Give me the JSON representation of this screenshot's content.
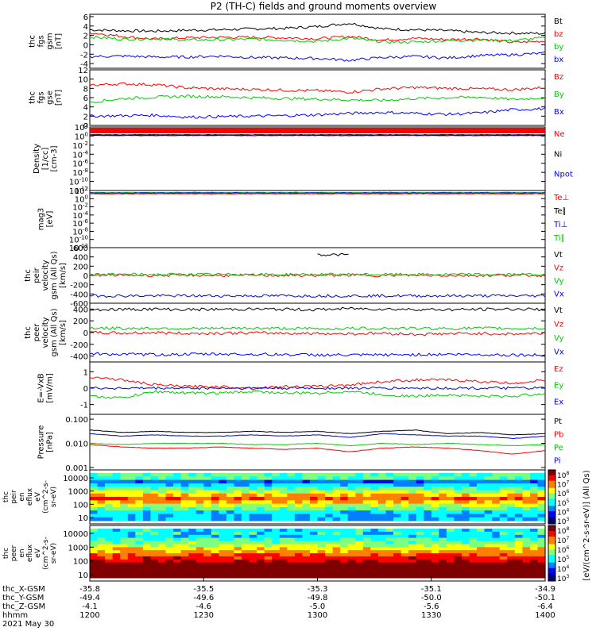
{
  "title": "P2 (TH-C) fields and ground moments overview",
  "panels": [
    {
      "id": "fgs_gsm",
      "ylabel": [
        "thc",
        "fgs",
        "gsm",
        "[nT]"
      ],
      "yticks": [
        "6",
        "4",
        "2",
        "0",
        "-2",
        "-4"
      ],
      "ylim": [
        -5,
        6.5
      ],
      "series": [
        {
          "name": "Bt",
          "color": "#000000",
          "values": [
            3.2,
            3.0,
            2.9,
            3.1,
            3.2,
            3.4,
            3.5,
            3.9,
            4.6,
            3.4,
            3.2,
            3.0,
            2.6,
            2.5,
            2.4
          ]
        },
        {
          "name": "bz",
          "color": "#ff0000",
          "values": [
            2.6,
            1.8,
            1.2,
            1.5,
            1.6,
            1.6,
            1.5,
            1.3,
            1.8,
            1.0,
            1.4,
            1.1,
            1.3,
            0.5,
            0.8
          ]
        },
        {
          "name": "by",
          "color": "#00cc00",
          "values": [
            1.7,
            1.2,
            1.3,
            1.0,
            1.1,
            1.2,
            1.0,
            0.7,
            1.4,
            0.6,
            0.6,
            0.9,
            1.0,
            0.9,
            1.5
          ]
        },
        {
          "name": "bx",
          "color": "#0000ff",
          "values": [
            -2.5,
            -2.4,
            -2.6,
            -2.6,
            -2.4,
            -2.7,
            -2.8,
            -2.9,
            -3.3,
            -2.7,
            -2.5,
            -2.8,
            -2.3,
            -2.1,
            -1.8
          ]
        }
      ]
    },
    {
      "id": "fgs_gse",
      "ylabel": [
        "thc",
        "fgs",
        "gse",
        "[nT]"
      ],
      "yticks": [
        "12",
        "10",
        "8",
        "6",
        "4",
        "2",
        "0"
      ],
      "ylim": [
        0,
        12
      ],
      "series": [
        {
          "name": "Bz",
          "color": "#ff0000",
          "values": [
            8.7,
            9.0,
            8.8,
            8.1,
            7.9,
            7.8,
            7.6,
            7.5,
            7.2,
            7.9,
            8.2,
            8.0,
            7.9,
            7.7,
            8.2
          ]
        },
        {
          "name": "By",
          "color": "#00cc00",
          "values": [
            5.0,
            5.8,
            6.1,
            6.3,
            6.2,
            6.0,
            5.8,
            5.7,
            5.5,
            5.4,
            5.8,
            6.0,
            6.1,
            5.6,
            6.0
          ]
        },
        {
          "name": "Bx",
          "color": "#0000ff",
          "values": [
            2.0,
            2.1,
            2.2,
            1.8,
            1.9,
            2.0,
            2.1,
            2.3,
            2.6,
            2.8,
            2.6,
            2.4,
            2.7,
            3.4,
            3.6
          ]
        }
      ]
    },
    {
      "id": "density",
      "ylabel": [
        "Density",
        "[1/cc]",
        "[cm-3]"
      ],
      "yticks": [
        "10^2",
        "10^0",
        "10^-2",
        "10^-4",
        "10^-6",
        "10^-8",
        "10^-10",
        "10^-12"
      ],
      "ylim": [
        -12,
        2
      ],
      "log": true,
      "series": [
        {
          "name": "Ne",
          "color": "#ff0000",
          "values": [
            0.1,
            0.1,
            0.1,
            0.1,
            0.1,
            0.1,
            0.1,
            0.1,
            0.1,
            0.1,
            0.1,
            0.1,
            0.1,
            0.1,
            0.1
          ]
        },
        {
          "name": "Ni",
          "color": "#000000",
          "values": [
            0.2,
            0.2,
            0.2,
            0.2,
            0.2,
            0.2,
            0.2,
            0.2,
            0.2,
            0.2,
            0.2,
            0.2,
            0.2,
            0.2,
            0.2
          ]
        },
        {
          "name": "Npot",
          "color": "#0000ff",
          "values": [
            0.3,
            0.3,
            0.3,
            0.3,
            0.3,
            0.3,
            0.3,
            0.3,
            0.3,
            0.3,
            0.3,
            0.3,
            0.3,
            0.3,
            0.3
          ]
        }
      ]
    },
    {
      "id": "temp",
      "ylabel": [
        "mag3",
        "[eV]"
      ],
      "yticks": [
        "10^2",
        "10^0",
        "10^-2",
        "10^-4",
        "10^-6",
        "10^-8",
        "10^-10",
        "10^-12"
      ],
      "ylim": [
        -12,
        2
      ],
      "log": true,
      "series": [
        {
          "name": "Te⊥",
          "color": "#ff0000",
          "values": [
            1.2,
            1.2,
            1.2,
            1.2,
            1.2,
            1.2,
            1.2,
            1.2,
            1.2,
            1.2,
            1.2,
            1.2,
            1.2,
            1.2,
            1.2
          ]
        },
        {
          "name": "Te∥",
          "color": "#000000",
          "values": [
            1.3,
            1.3,
            1.3,
            1.3,
            1.3,
            1.3,
            1.3,
            1.3,
            1.3,
            1.3,
            1.3,
            1.3,
            1.3,
            1.3,
            1.3
          ]
        },
        {
          "name": "Ti⊥",
          "color": "#0000ff",
          "values": [
            1.5,
            1.5,
            1.5,
            1.5,
            1.5,
            1.5,
            1.5,
            1.5,
            1.5,
            1.5,
            1.5,
            1.5,
            1.5,
            1.5,
            1.5
          ]
        },
        {
          "name": "Ti∥",
          "color": "#00cc00",
          "values": [
            1.4,
            1.4,
            1.4,
            1.4,
            1.4,
            1.4,
            1.4,
            1.4,
            1.4,
            1.4,
            1.4,
            1.4,
            1.4,
            1.4,
            1.4
          ]
        }
      ]
    },
    {
      "id": "peir_vel",
      "ylabel": [
        "thc",
        "peir",
        "velocity",
        "gsm (All Qs)",
        "[km/s]"
      ],
      "yticks": [
        "600",
        "400",
        "200",
        "0",
        "-200",
        "-400",
        "-600"
      ],
      "ylim": [
        -600,
        600
      ],
      "series": [
        {
          "name": "Vt",
          "color": "#000000",
          "values": [
            null,
            null,
            null,
            null,
            null,
            null,
            null,
            450,
            445,
            null,
            null,
            null,
            null,
            null,
            null
          ]
        },
        {
          "name": "Vz",
          "color": "#ff0000",
          "values": [
            10,
            5,
            0,
            5,
            0,
            5,
            0,
            0,
            10,
            0,
            5,
            0,
            0,
            5,
            0
          ]
        },
        {
          "name": "Vy",
          "color": "#00cc00",
          "values": [
            20,
            20,
            20,
            20,
            20,
            20,
            20,
            20,
            20,
            20,
            20,
            20,
            20,
            20,
            20
          ]
        },
        {
          "name": "Vx",
          "color": "#0000ff",
          "values": [
            -440,
            -440,
            -440,
            -440,
            -440,
            -440,
            -440,
            -440,
            -440,
            -440,
            -440,
            -440,
            -440,
            -440,
            -440
          ]
        }
      ]
    },
    {
      "id": "peer_vel",
      "ylabel": [
        "thc",
        "peer",
        "velocity",
        "gsm (All Qs)",
        "[km/s]"
      ],
      "yticks": [
        "400",
        "200",
        "0",
        "-200",
        "-400"
      ],
      "ylim": [
        -500,
        500
      ],
      "series": [
        {
          "name": "Vt",
          "color": "#000000",
          "values": [
            390,
            395,
            400,
            390,
            395,
            400,
            395,
            390,
            410,
            400,
            395,
            390,
            395,
            400,
            395
          ]
        },
        {
          "name": "Vz",
          "color": "#ff0000",
          "values": [
            0,
            -10,
            0,
            -15,
            -10,
            -5,
            -10,
            -15,
            -20,
            -10,
            -30,
            -20,
            -15,
            -25,
            -10
          ]
        },
        {
          "name": "Vy",
          "color": "#00cc00",
          "values": [
            80,
            70,
            75,
            70,
            70,
            75,
            70,
            65,
            70,
            75,
            70,
            70,
            75,
            70,
            75
          ]
        },
        {
          "name": "Vx",
          "color": "#0000ff",
          "values": [
            -360,
            -370,
            -375,
            -370,
            -365,
            -370,
            -375,
            -380,
            -385,
            -380,
            -375,
            -370,
            -375,
            -380,
            -385
          ]
        }
      ]
    },
    {
      "id": "e_field",
      "ylabel": [
        "E=-VxB",
        "[mV/m]"
      ],
      "yticks": [
        "1",
        "0",
        "-1"
      ],
      "ylim": [
        -1.6,
        1.6
      ],
      "series": [
        {
          "name": "Ez",
          "color": "#ff0000",
          "values": [
            0.7,
            0.5,
            0.2,
            0.1,
            0.1,
            0.0,
            0.1,
            0.1,
            0.2,
            0.4,
            0.5,
            0.5,
            0.4,
            0.3,
            0.5
          ]
        },
        {
          "name": "Ey",
          "color": "#00cc00",
          "values": [
            -0.5,
            -0.6,
            -0.2,
            -0.3,
            -0.3,
            -0.2,
            -0.3,
            -0.3,
            -0.2,
            -0.4,
            -0.5,
            -0.4,
            -0.5,
            -0.5,
            -0.3
          ]
        },
        {
          "name": "Ex",
          "color": "#0000ff",
          "values": [
            0,
            0,
            0,
            0,
            0,
            0,
            0,
            0,
            0,
            0,
            0,
            0,
            0,
            0,
            0
          ]
        }
      ]
    },
    {
      "id": "pressure",
      "ylabel": [
        "Pressure",
        "[nPa]"
      ],
      "yticks": [
        "0.100",
        "0.010",
        "0.001"
      ],
      "ytickvals": [
        -1,
        -2,
        -3
      ],
      "ylim": [
        -3.1,
        -0.8
      ],
      "log": true,
      "series": [
        {
          "name": "Pt",
          "color": "#000000",
          "values": [
            -1.45,
            -1.55,
            -1.5,
            -1.55,
            -1.55,
            -1.5,
            -1.55,
            -1.5,
            -1.6,
            -1.5,
            -1.45,
            -1.6,
            -1.55,
            -1.65,
            -1.6
          ]
        },
        {
          "name": "Pb",
          "color": "#ff0000",
          "values": [
            -2.05,
            -2.15,
            -2.2,
            -2.2,
            -2.15,
            -2.2,
            -2.25,
            -2.2,
            -2.35,
            -2.2,
            -2.15,
            -2.2,
            -2.3,
            -2.45,
            -2.3
          ]
        },
        {
          "name": "Pe",
          "color": "#00cc00",
          "values": [
            -2.0,
            -2.05,
            -2.0,
            -2.0,
            -2.0,
            -2.05,
            -2.05,
            -2.0,
            -2.1,
            -2.0,
            -2.05,
            -2.0,
            -2.05,
            -2.1,
            -2.05
          ]
        },
        {
          "name": "Pi",
          "color": "#0000ff",
          "values": [
            -1.6,
            -1.7,
            -1.65,
            -1.7,
            -1.7,
            -1.65,
            -1.7,
            -1.65,
            -1.75,
            -1.6,
            -1.65,
            -1.7,
            -1.7,
            -1.8,
            -1.7
          ]
        }
      ]
    }
  ],
  "spectrograms": [
    {
      "id": "peir_en",
      "ylabel": [
        "thc",
        "peir",
        "en",
        "eflux",
        "eV",
        "(cm^2-s-",
        "sr-eV)"
      ],
      "yticks": [
        "10000",
        "1000",
        "100",
        "10"
      ]
    },
    {
      "id": "peer_en",
      "ylabel": [
        "thc",
        "peer",
        "en",
        "eflux",
        "eV",
        "(cm^2-s-",
        "sr-eV)"
      ],
      "yticks": [
        "10000",
        "1000",
        "100",
        "10"
      ]
    }
  ],
  "colorbar": {
    "label": "[eV/(cm^2-s-sr-eV)] (All Qs)",
    "ticks1": [
      "10^8",
      "10^7",
      "10^6",
      "10^5",
      "10^4",
      "10^3"
    ],
    "ticks2": [
      "10^8",
      "10^7",
      "10^6",
      "10^5",
      "10^4",
      "10^3"
    ]
  },
  "xaxis": {
    "row_labels": [
      "thc_X-GSM",
      "thc_Y-GSM",
      "thc_Z-GSM",
      "hhmm",
      "2021 May 30"
    ],
    "columns": [
      [
        "-35.8",
        "-49.4",
        "-4.1",
        "1200"
      ],
      [
        "-35.5",
        "-49.6",
        "-4.6",
        "1230"
      ],
      [
        "-35.3",
        "-49.8",
        "-5.0",
        "1300"
      ],
      [
        "-35.1",
        "-50.0",
        "-5.6",
        "1330"
      ],
      [
        "-34.9",
        "-50.1",
        "-6.4",
        "1400"
      ]
    ]
  }
}
